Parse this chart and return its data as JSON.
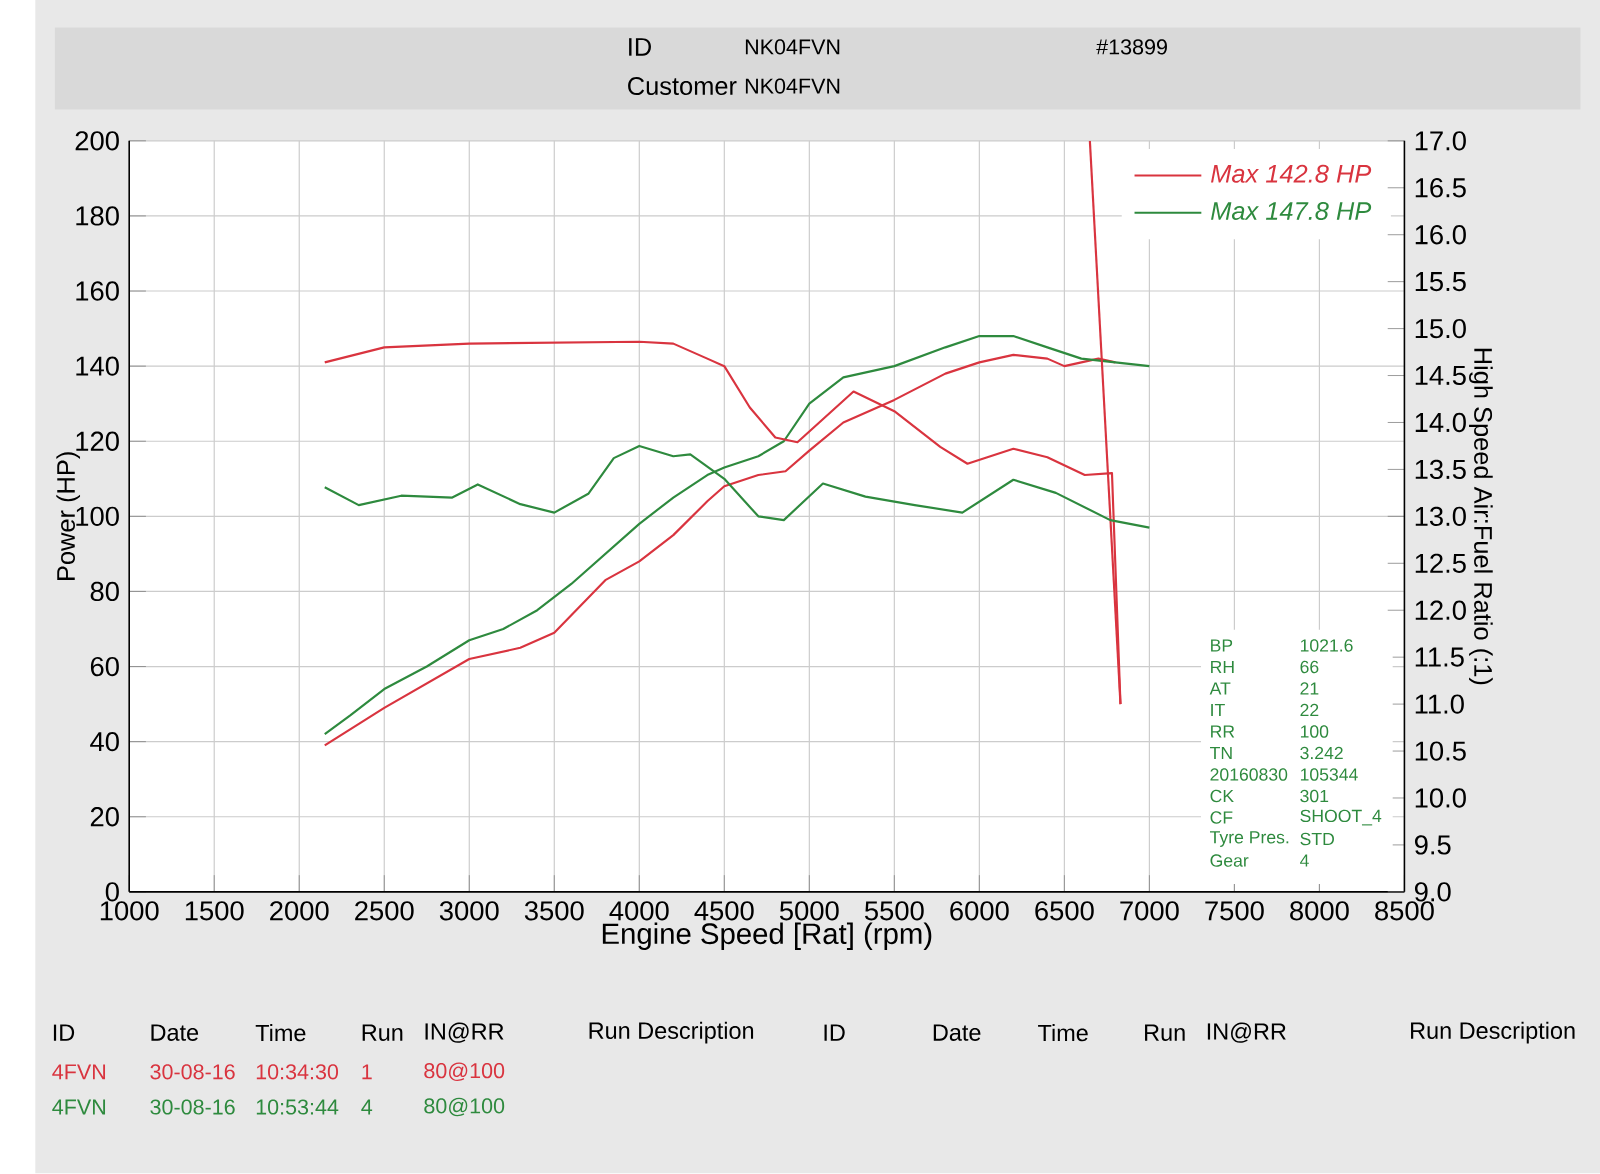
{
  "chart_data": {
    "type": "line",
    "xlabel": "Engine Speed [Rat] (rpm)",
    "ylabel": "Power (HP)",
    "y2label": "High Speed Air:Fuel Ratio (:1)",
    "xlim": [
      1000,
      8500
    ],
    "xticks": [
      1000,
      1500,
      2000,
      2500,
      3000,
      3500,
      4000,
      4500,
      5000,
      5500,
      6000,
      6500,
      7000,
      7500,
      8000,
      8500
    ],
    "ylim": [
      0,
      200
    ],
    "yticks": [
      0,
      20,
      40,
      60,
      80,
      100,
      120,
      140,
      160,
      180,
      200
    ],
    "y2lim": [
      9,
      17
    ],
    "y2ticks": [
      {
        "value": 9,
        "label": "9.0"
      },
      {
        "value": 9.5,
        "label": "9.5"
      },
      {
        "value": 10,
        "label": "10.0"
      },
      {
        "value": 10.5,
        "label": "10.5"
      },
      {
        "value": 11,
        "label": "11.0"
      },
      {
        "value": 11.5,
        "label": "11.5"
      },
      {
        "value": 12,
        "label": "12.0"
      },
      {
        "value": 12.5,
        "label": "12.5"
      },
      {
        "value": 13,
        "label": "13.0"
      },
      {
        "value": 13.5,
        "label": "13.5"
      },
      {
        "value": 14,
        "label": "14.0"
      },
      {
        "value": 14.5,
        "label": "14.5"
      },
      {
        "value": 15,
        "label": "15.0"
      },
      {
        "value": 15.5,
        "label": "15.5"
      },
      {
        "value": 16,
        "label": "16.0"
      },
      {
        "value": 16.5,
        "label": "16.5"
      },
      {
        "value": 17,
        "label": "17.0"
      }
    ],
    "grid": true,
    "legend": "top right",
    "marker": "none",
    "line_style": "solid",
    "series": [
      {
        "name": "Max 142.8 HP",
        "color": "#d9343f",
        "x": [
          2150,
          2500,
          3000,
          3300,
          3500,
          3800,
          4000,
          4200,
          4400,
          4500,
          4700,
          4860,
          5000,
          5200,
          5500,
          5800,
          6000,
          6200,
          6400,
          6500,
          6700,
          6800
        ],
        "values": [
          39,
          49,
          62,
          65,
          69,
          83,
          88,
          95,
          104,
          108,
          111,
          112,
          117.5,
          125,
          131,
          138,
          141,
          143,
          142,
          140,
          142,
          141
        ]
      },
      {
        "name": "Max 147.8 HP",
        "color": "#2e8a3e",
        "x": [
          2150,
          2300,
          2500,
          2750,
          3000,
          3200,
          3400,
          3600,
          3800,
          4000,
          4200,
          4400,
          4500,
          4700,
          4850,
          5000,
          5200,
          5500,
          5800,
          6000,
          6200,
          6400,
          6600,
          6800,
          7000
        ],
        "values": [
          42,
          47,
          54,
          60,
          67,
          70,
          75,
          82,
          90,
          98,
          105,
          111,
          113,
          116,
          120,
          130,
          137,
          140,
          145,
          148,
          148,
          145,
          142,
          141,
          140
        ]
      },
      {
        "color": "#d9343f",
        "axis": "y2",
        "x": [
          2150,
          2500,
          3000,
          3500,
          4000,
          4200,
          4400,
          4500,
          4650,
          4800,
          4930,
          5260,
          5500,
          5770,
          5930,
          6200,
          6400,
          6620,
          6780,
          6830
        ],
        "values": [
          14.64,
          14.8,
          14.84,
          14.85,
          14.86,
          14.84,
          14.68,
          14.6,
          14.16,
          13.84,
          13.79,
          14.33,
          14.12,
          13.74,
          13.56,
          13.72,
          13.63,
          13.44,
          13.46,
          11.0
        ]
      },
      {
        "color": "#d9343f",
        "axis": "y2",
        "x": [
          6650,
          6830
        ],
        "values": [
          17.0,
          11.0
        ]
      },
      {
        "color": "#2e8a3e",
        "axis": "y2",
        "x": [
          2150,
          2350,
          2600,
          2900,
          3050,
          3300,
          3500,
          3700,
          3850,
          4000,
          4200,
          4300,
          4500,
          4700,
          4850,
          5080,
          5330,
          5620,
          5900,
          6200,
          6450,
          6770,
          7000
        ],
        "values": [
          13.31,
          13.12,
          13.22,
          13.2,
          13.34,
          13.13,
          13.04,
          13.24,
          13.62,
          13.75,
          13.64,
          13.66,
          13.4,
          13.0,
          12.96,
          13.35,
          13.21,
          13.12,
          13.04,
          13.39,
          13.25,
          12.96,
          12.88
        ]
      }
    ],
    "annotations": [
      "ID",
      "NK04FVN",
      "Customer",
      "NK04FVN",
      "#13899",
      "BP",
      "1021.6",
      "RH",
      "66",
      "AT",
      "21",
      "IT",
      "22",
      "RR",
      "100",
      "TN",
      "3.242",
      "20160830",
      "105344",
      "CK",
      "301",
      "CF",
      "SHOOT_4",
      "Tyre Pres.",
      "STD",
      "Gear",
      "4",
      "ID",
      "Date",
      "Time",
      "Run",
      "IN@RR",
      "Run Description",
      "ID",
      "Date",
      "Time",
      "Run",
      "IN@RR",
      "Run Description",
      "4FVN",
      "30-08-16",
      "10:34:30",
      "1",
      "80@100",
      "4FVN",
      "30-08-16",
      "10:53:44",
      "4",
      "80@100"
    ]
  }
}
